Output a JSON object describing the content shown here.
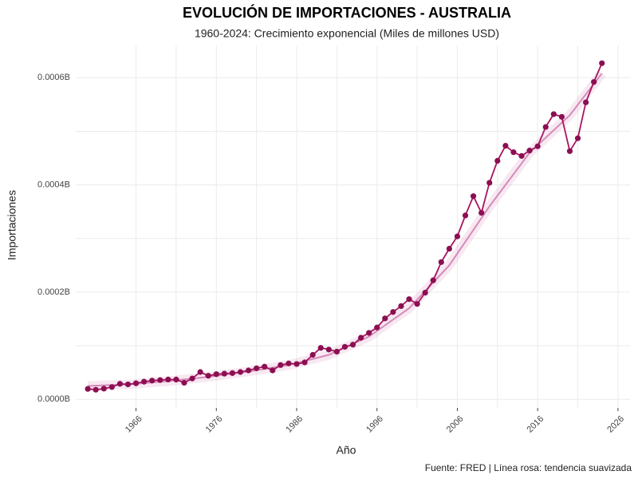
{
  "chart_data": {
    "type": "line",
    "title": "EVOLUCIÓN DE IMPORTACIONES - AUSTRALIA",
    "subtitle": "1960-2024: Crecimiento exponencial (Miles de millones USD)",
    "x_label": "Año",
    "y_label": "Importaciones",
    "caption": "Fuente: FRED | Línea rosa: tendencia suavizada",
    "x": [
      1960,
      1961,
      1962,
      1963,
      1964,
      1965,
      1966,
      1967,
      1968,
      1969,
      1970,
      1971,
      1972,
      1973,
      1974,
      1975,
      1976,
      1977,
      1978,
      1979,
      1980,
      1981,
      1982,
      1983,
      1984,
      1985,
      1986,
      1987,
      1988,
      1989,
      1990,
      1991,
      1992,
      1993,
      1994,
      1995,
      1996,
      1997,
      1998,
      1999,
      2000,
      2001,
      2002,
      2003,
      2004,
      2005,
      2006,
      2007,
      2008,
      2009,
      2010,
      2011,
      2012,
      2013,
      2014,
      2015,
      2016,
      2017,
      2018,
      2019,
      2020,
      2021,
      2022,
      2023,
      2024
    ],
    "series": [
      {
        "color": "#a8145f",
        "marker_color": "#8b0f52",
        "values": [
          1.95e-05,
          1.8e-05,
          2e-05,
          2.3e-05,
          2.9e-05,
          2.8e-05,
          3e-05,
          3.3e-05,
          3.5e-05,
          3.6e-05,
          3.7e-05,
          3.7e-05,
          3.1e-05,
          3.9e-05,
          5.1e-05,
          4.4e-05,
          4.7e-05,
          4.8e-05,
          4.9e-05,
          5.1e-05,
          5.4e-05,
          5.8e-05,
          6.1e-05,
          5.4e-05,
          6.4e-05,
          6.7e-05,
          6.6e-05,
          6.9e-05,
          8.3e-05,
          9.6e-05,
          9.3e-05,
          8.9e-05,
          9.8e-05,
          0.000102,
          0.000115,
          0.000124,
          0.000134,
          0.000151,
          0.000163,
          0.000174,
          0.000187,
          0.000178,
          0.000199,
          0.000222,
          0.000256,
          0.000281,
          0.000304,
          0.000343,
          0.000379,
          0.000348,
          0.000404,
          0.000445,
          0.000473,
          0.000461,
          0.000454,
          0.000464,
          0.000472,
          0.000508,
          0.000532,
          0.000527,
          0.000463,
          0.000487,
          0.000554,
          0.000592,
          0.000627
        ]
      }
    ],
    "trend": {
      "color": "#d58bb8",
      "x": [
        1960,
        1965,
        1970,
        1975,
        1980,
        1985,
        1990,
        1995,
        2000,
        2005,
        2010,
        2015,
        2020,
        2024
      ],
      "values": [
        2.5e-05,
        2.8e-05,
        3.4e-05,
        4.2e-05,
        5.2e-05,
        6.4e-05,
        8.3e-05,
        0.000117,
        0.00017,
        0.00025,
        0.00036,
        0.00046,
        0.00053,
        0.000608
      ]
    },
    "xlim": [
      1958.5,
      2027.5
    ],
    "ylim": [
      -1.6e-05,
      0.00066
    ],
    "xticks": [
      1966,
      1976,
      1986,
      1996,
      2006,
      2016,
      2026
    ],
    "yticks": [
      {
        "value": 0,
        "label": "0.0000B"
      },
      {
        "value": 0.0002,
        "label": "0.0002B"
      },
      {
        "value": 0.0004,
        "label": "0.0004B"
      },
      {
        "value": 0.0006,
        "label": "0.0006B"
      }
    ],
    "grid": true
  }
}
